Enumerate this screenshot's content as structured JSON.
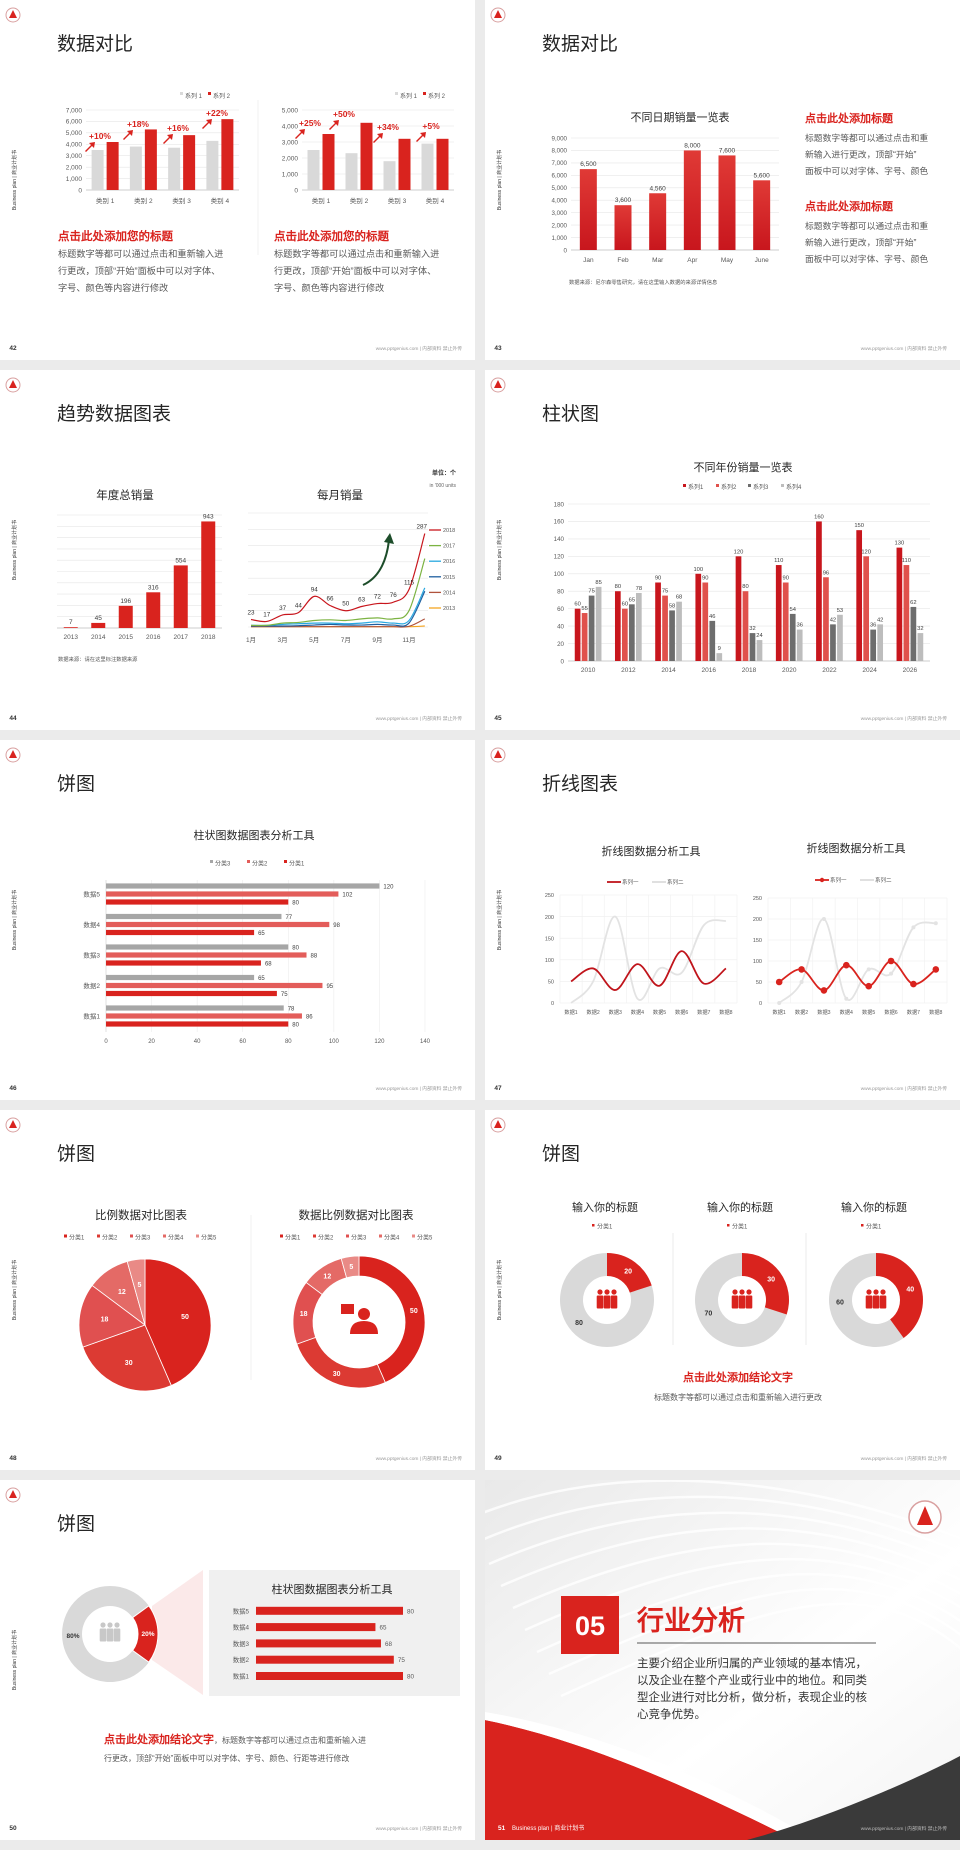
{
  "common": {
    "side_label": "Business plan | 商业计划书",
    "footer": "www.pptgenius.com | 内部资料 禁止外传"
  },
  "colors": {
    "accent_red": "#d9231e",
    "light_gray": "#d9d9d9",
    "text": "#595959",
    "dark": "#404040"
  },
  "slides": [
    {
      "page": "42",
      "title": "数据对比",
      "blocks": [
        {
          "heading": "点击此处添加您的标题",
          "body": [
            "标题数字等都可以通过点击和重新输入进",
            "行更改，顶部“开始”面板中可以对字体、",
            "字号、颜色等内容进行修改"
          ]
        },
        {
          "heading": "点击此处添加您的标题",
          "body": [
            "标题数字等都可以通过点击和重新输入进",
            "行更改，顶部“开始”面板中可以对字体、",
            "字号、颜色等内容进行修改"
          ]
        }
      ]
    },
    {
      "page": "43",
      "title": "数据对比",
      "source": "数据来源：尼尔森零售研究，请在这里输入数据的来源详情信息",
      "blocks": [
        {
          "heading": "点击此处添加标题",
          "body": [
            "标题数字等都可以通过点击和重",
            "新输入进行更改，顶部“开始”",
            "面板中可以对字体、字号、颜色"
          ]
        },
        {
          "heading": "点击此处添加标题",
          "body": [
            "标题数字等都可以通过点击和重",
            "新输入进行更改，顶部“开始”",
            "面板中可以对字体、字号、颜色"
          ]
        }
      ]
    },
    {
      "page": "44",
      "title": "趋势数据图表",
      "source": "数据来源：请在这里标注数据来源",
      "unit": "单位：个",
      "unit_sub": "in '000 units"
    },
    {
      "page": "45",
      "title": "柱状图"
    },
    {
      "page": "46",
      "title": "饼图"
    },
    {
      "page": "47",
      "title": "折线图表"
    },
    {
      "page": "48",
      "title": "饼图"
    },
    {
      "page": "49",
      "title": "饼图",
      "conclusion": "点击此处添加结论文字",
      "conclusion_body": "标题数字等都可以通过点击和重新输入进行更改"
    },
    {
      "page": "50",
      "title": "饼图",
      "conclusion": "点击此处添加结论文字",
      "conclusion_rest": "，标题数字等都可以通过点击和重新输入进",
      "conclusion_line2": "行更改，顶部“开始”面板中可以对字体、字号、颜色、行距等进行修改"
    },
    {
      "page": "51",
      "section_number": "05",
      "section_title": "行业分析",
      "body": [
        "主要介绍企业所归属的产业领域的基本情况，",
        "以及企业在整个产业或行业中的地位。和同类",
        "型企业进行对比分析，做分析，表现企业的核",
        "心竞争优势。"
      ],
      "footer_label": "Business plan | 商业计划书"
    }
  ],
  "chart_data": [
    {
      "type": "bar",
      "categories": [
        "类别 1",
        "类别 2",
        "类别 3",
        "类别 4"
      ],
      "series": [
        {
          "name": "系列 1",
          "values": [
            3500,
            3800,
            3700,
            4300
          ],
          "color": "#d9d9d9"
        },
        {
          "name": "系列 2",
          "values": [
            4200,
            5300,
            4800,
            6200
          ],
          "color": "#d9231e"
        }
      ],
      "ylim": [
        0,
        7000
      ],
      "grid_step": 1000,
      "yticks": [
        "0",
        "1,000",
        "2,000",
        "3,000",
        "4,000",
        "5,000",
        "6,000",
        "7,000"
      ],
      "annotations": [
        "+10%",
        "+18%",
        "+16%",
        "+22%"
      ],
      "legend": "top-right"
    },
    {
      "type": "bar",
      "categories": [
        "类别 1",
        "类别 2",
        "类别 3",
        "类别 4"
      ],
      "series": [
        {
          "name": "系列 1",
          "values": [
            2500,
            2300,
            1800,
            2900
          ],
          "color": "#d9d9d9"
        },
        {
          "name": "系列 2",
          "values": [
            3500,
            4200,
            3200,
            3200
          ],
          "color": "#d9231e"
        }
      ],
      "ylim": [
        0,
        5000
      ],
      "grid_step": 1000,
      "yticks": [
        "0",
        "1,000",
        "2,000",
        "3,000",
        "4,000",
        "5,000"
      ],
      "annotations": [
        "+25%",
        "+50%",
        "+34%",
        "+5%"
      ],
      "legend": "top-right"
    },
    {
      "type": "bar",
      "title": "不同日期销量一览表",
      "categories": [
        "Jan",
        "Feb",
        "Mar",
        "Apr",
        "May",
        "June"
      ],
      "series": [
        {
          "values": [
            6500,
            3600,
            4560,
            8000,
            7600,
            5600
          ],
          "color": "#d9231e"
        }
      ],
      "labels": [
        "6,500",
        "3,600",
        "4,560",
        "8,000",
        "7,600",
        "5,600"
      ],
      "ylim": [
        0,
        9000
      ],
      "grid_step": 1000,
      "yticks": [
        "0",
        "1,000",
        "2,000",
        "3,000",
        "4,000",
        "5,000",
        "6,000",
        "7,000",
        "8,000",
        "9,000"
      ],
      "data_labels": true
    },
    {
      "type": "bar",
      "title": "年度总销量",
      "categories": [
        "2013",
        "2014",
        "2015",
        "2016",
        "2017",
        "2018"
      ],
      "series": [
        {
          "values": [
            7,
            45,
            196,
            316,
            554,
            943
          ],
          "color": "#d9231e"
        }
      ],
      "ylim": [
        0,
        1000
      ],
      "grid_step": 100,
      "data_labels": true
    },
    {
      "type": "line",
      "title": "每月销量",
      "x": [
        1,
        2,
        3,
        4,
        5,
        6,
        7,
        8,
        9,
        10,
        11,
        12
      ],
      "xticks": [
        "1月",
        "3月",
        "5月",
        "7月",
        "9月",
        "11月"
      ],
      "ylim": [
        0,
        350
      ],
      "grid_step": 50,
      "series": [
        {
          "name": "2018",
          "color": "#c8161d",
          "values": [
            23,
            17,
            37,
            44,
            94,
            66,
            50,
            63,
            72,
            76,
            115,
            287
          ],
          "labels": [
            "23",
            "17",
            "37",
            "44",
            "94",
            "66",
            "50",
            "63",
            "72",
            "76",
            "115",
            "287"
          ]
        },
        {
          "name": "2017",
          "color": "#7cb342",
          "values": [
            5,
            5,
            12,
            14,
            20,
            22,
            20,
            25,
            28,
            25,
            50,
            210
          ]
        },
        {
          "name": "2016",
          "color": "#29a8e0",
          "values": [
            5,
            5,
            8,
            10,
            12,
            12,
            10,
            12,
            16,
            12,
            20,
            120
          ]
        },
        {
          "name": "2015",
          "color": "#1f5fa0",
          "values": [
            3,
            3,
            3,
            4,
            6,
            8,
            6,
            6,
            8,
            6,
            12,
            110
          ]
        },
        {
          "name": "2014",
          "color": "#b0533c",
          "values": [
            1,
            1,
            1,
            1,
            1,
            1,
            1,
            1,
            1,
            1,
            2,
            25
          ]
        },
        {
          "name": "2013",
          "color": "#f5a623",
          "values": [
            1,
            1,
            1,
            1,
            1,
            1,
            1,
            1,
            1,
            1,
            1,
            3
          ]
        }
      ],
      "legend": "right"
    },
    {
      "type": "bar",
      "title": "不同年份销量一览表",
      "categories": [
        "2010",
        "2012",
        "2014",
        "2016",
        "2018",
        "2020",
        "2022",
        "2024",
        "2026"
      ],
      "series": [
        {
          "name": "系列1",
          "color": "#c8161d",
          "values": [
            60,
            80,
            90,
            100,
            120,
            110,
            160,
            150,
            130
          ]
        },
        {
          "name": "系列2",
          "color": "#e0514c",
          "values": [
            55,
            60,
            75,
            90,
            80,
            90,
            96,
            120,
            110
          ]
        },
        {
          "name": "系列3",
          "color": "#6d6d6d",
          "values": [
            75,
            65,
            58,
            46,
            32,
            54,
            42,
            36,
            62
          ]
        },
        {
          "name": "系列4",
          "color": "#bdbdbd",
          "values": [
            85,
            78,
            68,
            9,
            24,
            36,
            53,
            42,
            32
          ]
        }
      ],
      "ylim": [
        0,
        180
      ],
      "grid_step": 20,
      "yticks": [
        "0",
        "20",
        "40",
        "60",
        "80",
        "100",
        "120",
        "140",
        "160",
        "180"
      ],
      "data_labels": true,
      "legend": "top"
    },
    {
      "type": "bar",
      "orientation": "horizontal",
      "title": "柱状图数据图表分析工具",
      "categories": [
        "数据1",
        "数据2",
        "数据3",
        "数据4",
        "数据5"
      ],
      "series": [
        {
          "name": "分类1",
          "color": "#d9231e",
          "values": [
            80,
            75,
            68,
            65,
            80
          ]
        },
        {
          "name": "分类2",
          "color": "#e35d5a",
          "values": [
            86,
            95,
            88,
            98,
            102
          ]
        },
        {
          "name": "分类3",
          "color": "#a6a6a6",
          "values": [
            78,
            65,
            80,
            77,
            120
          ]
        }
      ],
      "xlim": [
        0,
        140
      ],
      "grid_step": 20,
      "xticks": [
        "0",
        "20",
        "40",
        "60",
        "80",
        "100",
        "120",
        "140"
      ],
      "legend": "top"
    },
    {
      "type": "line",
      "title": "折线图数据分析工具",
      "categories": [
        "数据1",
        "数据2",
        "数据3",
        "数据4",
        "数据5",
        "数据6",
        "数据7",
        "数据8"
      ],
      "series": [
        {
          "name": "系列一",
          "color": "#c0141b",
          "values": [
            50,
            80,
            30,
            90,
            40,
            120,
            45,
            80
          ]
        },
        {
          "name": "系列二",
          "color": "#e3e3e3",
          "values": [
            0,
            50,
            200,
            10,
            80,
            70,
            180,
            190
          ]
        }
      ],
      "ylim": [
        0,
        250
      ],
      "grid_step": 50,
      "yticks": [
        "0",
        "50",
        "100",
        "150",
        "200",
        "250"
      ],
      "legend": "top"
    },
    {
      "type": "line",
      "title": "折线图数据分析工具",
      "markers": true,
      "categories": [
        "数据1",
        "数据2",
        "数据3",
        "数据4",
        "数据5",
        "数据6",
        "数据7",
        "数据8"
      ],
      "series": [
        {
          "name": "系列一",
          "color": "#d9231e",
          "values": [
            50,
            80,
            30,
            90,
            40,
            100,
            45,
            80
          ]
        },
        {
          "name": "系列二",
          "color": "#e3e3e3",
          "values": [
            0,
            50,
            200,
            10,
            80,
            70,
            180,
            190
          ]
        }
      ],
      "ylim": [
        0,
        250
      ],
      "grid_step": 50,
      "yticks": [
        "0",
        "50",
        "100",
        "150",
        "200",
        "250"
      ],
      "legend": "top"
    },
    {
      "type": "pie",
      "title": "比例数据对比图表",
      "categories": [
        "分类1",
        "分类2",
        "分类3",
        "分类4",
        "分类5"
      ],
      "values": [
        50,
        30,
        18,
        12,
        5
      ],
      "colors": [
        "#d9231e",
        "#dc3a33",
        "#e05050",
        "#e46a66",
        "#e98a86"
      ],
      "legend": "top"
    },
    {
      "type": "pie",
      "subtype": "donut",
      "title": "数据比例数据对比图表",
      "categories": [
        "分类1",
        "分类2",
        "分类3",
        "分类4",
        "分类5"
      ],
      "values": [
        50,
        30,
        18,
        12,
        5
      ],
      "colors": [
        "#d9231e",
        "#dc3a33",
        "#e05050",
        "#e46a66",
        "#e98a86"
      ],
      "legend": "top"
    },
    {
      "type": "pie",
      "subtype": "donut",
      "title": "输入你的标题",
      "legend_label": "分类1",
      "values": [
        20,
        80
      ],
      "colors": [
        "#d9231e",
        "#d9d9d9"
      ]
    },
    {
      "type": "pie",
      "subtype": "donut",
      "title": "输入你的标题",
      "legend_label": "分类1",
      "values": [
        30,
        70
      ],
      "colors": [
        "#d9231e",
        "#d9d9d9"
      ]
    },
    {
      "type": "pie",
      "subtype": "donut",
      "title": "输入你的标题",
      "legend_label": "分类1",
      "values": [
        40,
        60
      ],
      "colors": [
        "#d9231e",
        "#d9d9d9"
      ]
    },
    {
      "type": "pie",
      "subtype": "donut",
      "values": [
        20,
        80
      ],
      "labels": [
        "20%",
        "80%"
      ],
      "colors": [
        "#d9231e",
        "#d9d9d9"
      ]
    },
    {
      "type": "bar",
      "orientation": "horizontal",
      "title": "柱状图数据图表分析工具",
      "categories": [
        "数据1",
        "数据2",
        "数据3",
        "数据4",
        "数据5"
      ],
      "series": [
        {
          "values": [
            80,
            75,
            68,
            65,
            80
          ],
          "color": "#d9231e"
        }
      ]
    }
  ]
}
